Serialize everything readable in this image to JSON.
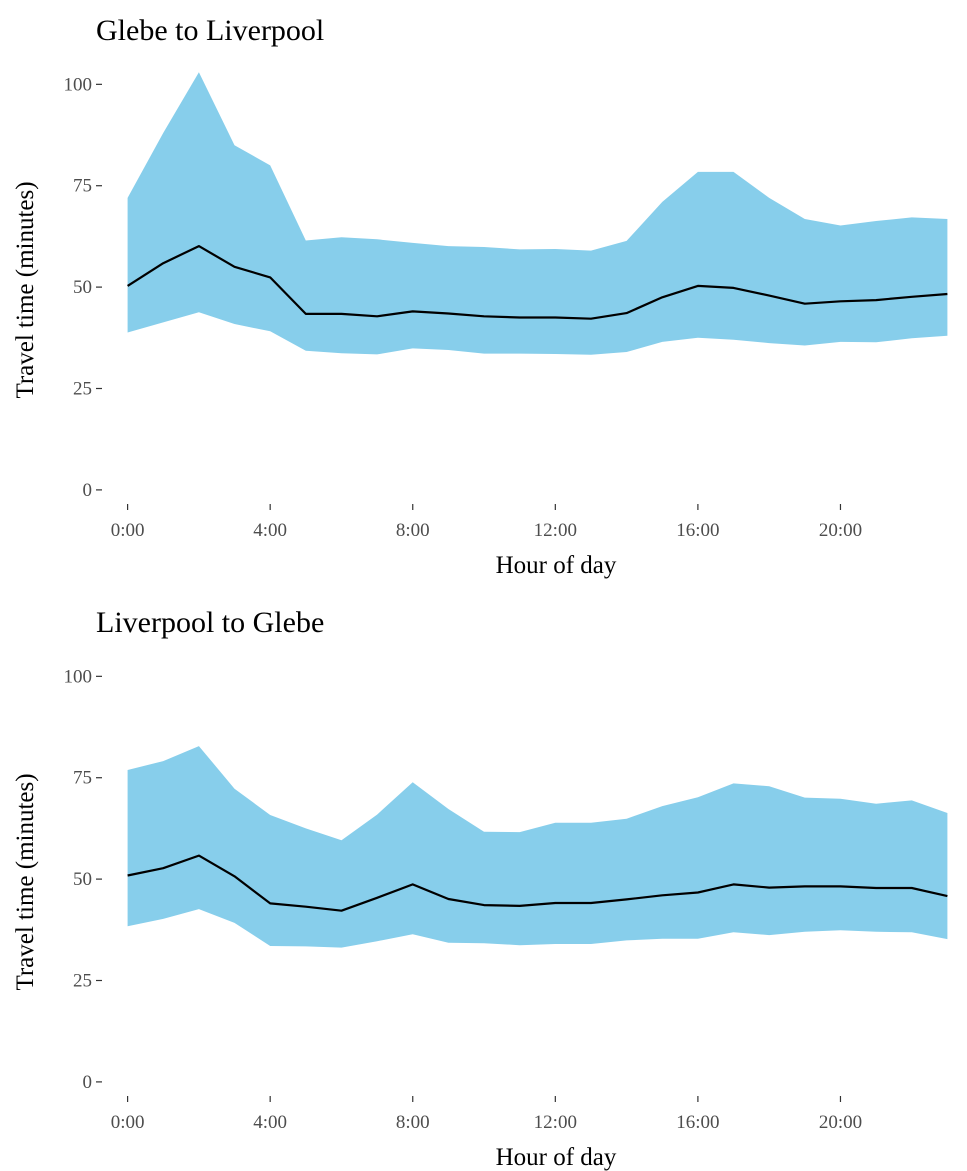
{
  "colors": {
    "ribbon": "#87ceeb",
    "line": "#000000",
    "tick_text": "#4d4d4d"
  },
  "chart_data": [
    {
      "type": "area",
      "title": "Glebe to Liverpool",
      "xlabel": "Hour of day",
      "ylabel": "Travel time (minutes)",
      "x": [
        0,
        1,
        2,
        3,
        4,
        5,
        6,
        7,
        8,
        9,
        10,
        11,
        12,
        13,
        14,
        15,
        16,
        17,
        18,
        19,
        20,
        21,
        22,
        23
      ],
      "xticks": [
        {
          "v": 0,
          "label": "0:00"
        },
        {
          "v": 4,
          "label": "4:00"
        },
        {
          "v": 8,
          "label": "8:00"
        },
        {
          "v": 12,
          "label": "12:00"
        },
        {
          "v": 16,
          "label": "16:00"
        },
        {
          "v": 20,
          "label": "20:00"
        }
      ],
      "yticks": [
        {
          "v": 0,
          "label": "0"
        },
        {
          "v": 25,
          "label": "25"
        },
        {
          "v": 50,
          "label": "50"
        },
        {
          "v": 75,
          "label": "75"
        },
        {
          "v": 100,
          "label": "100"
        }
      ],
      "xlim": [
        -0.55,
        23.55
      ],
      "ylim": [
        -2,
        106
      ],
      "grid": false,
      "series": [
        {
          "role": "upper",
          "values": [
            72,
            88,
            103,
            85,
            80,
            61.5,
            62.3,
            61.8,
            60.9,
            60.1,
            59.9,
            59.3,
            59.4,
            59,
            61.4,
            71,
            78.4,
            78.4,
            72,
            66.8,
            65.2,
            66.3,
            67.2,
            66.8
          ]
        },
        {
          "role": "median",
          "values": [
            50.3,
            55.9,
            60.1,
            55.0,
            52.4,
            43.4,
            43.4,
            42.8,
            44.0,
            43.5,
            42.8,
            42.5,
            42.5,
            42.2,
            43.6,
            47.5,
            50.3,
            49.8,
            47.9,
            45.9,
            46.5,
            46.8,
            47.6,
            48.3
          ]
        },
        {
          "role": "lower",
          "values": [
            38.8,
            41.3,
            43.8,
            40.9,
            39.1,
            34.3,
            33.7,
            33.4,
            34.9,
            34.5,
            33.6,
            33.6,
            33.5,
            33.3,
            34.0,
            36.5,
            37.5,
            37.0,
            36.2,
            35.6,
            36.5,
            36.4,
            37.4,
            38.0
          ]
        }
      ]
    },
    {
      "type": "area",
      "title": "Liverpool to Glebe",
      "xlabel": "Hour of day",
      "ylabel": "Travel time (minutes)",
      "x": [
        0,
        1,
        2,
        3,
        4,
        5,
        6,
        7,
        8,
        9,
        10,
        11,
        12,
        13,
        14,
        15,
        16,
        17,
        18,
        19,
        20,
        21,
        22,
        23
      ],
      "xticks": [
        {
          "v": 0,
          "label": "0:00"
        },
        {
          "v": 4,
          "label": "4:00"
        },
        {
          "v": 8,
          "label": "8:00"
        },
        {
          "v": 12,
          "label": "12:00"
        },
        {
          "v": 16,
          "label": "16:00"
        },
        {
          "v": 20,
          "label": "20:00"
        }
      ],
      "yticks": [
        {
          "v": 0,
          "label": "0"
        },
        {
          "v": 25,
          "label": "25"
        },
        {
          "v": 50,
          "label": "50"
        },
        {
          "v": 75,
          "label": "75"
        },
        {
          "v": 100,
          "label": "100"
        }
      ],
      "xlim": [
        -0.55,
        23.55
      ],
      "ylim": [
        -2,
        106
      ],
      "grid": false,
      "series": [
        {
          "role": "upper",
          "values": [
            76.9,
            79.1,
            82.8,
            72.3,
            65.8,
            62.5,
            59.6,
            65.9,
            73.9,
            67.3,
            61.7,
            61.6,
            63.9,
            63.9,
            64.9,
            68.0,
            70.2,
            73.6,
            72.9,
            70.1,
            69.8,
            68.6,
            69.4,
            66.3
          ]
        },
        {
          "role": "median",
          "values": [
            50.9,
            52.7,
            55.8,
            50.7,
            44.0,
            43.2,
            42.2,
            45.4,
            48.7,
            45.1,
            43.6,
            43.4,
            44.1,
            44.1,
            45.0,
            46.0,
            46.7,
            48.7,
            47.9,
            48.2,
            48.2,
            47.8,
            47.8,
            45.8
          ]
        },
        {
          "role": "lower",
          "values": [
            38.4,
            40.2,
            42.6,
            39.2,
            33.5,
            33.4,
            33.1,
            34.7,
            36.4,
            34.3,
            34.2,
            33.7,
            34.0,
            34.0,
            34.9,
            35.3,
            35.3,
            36.9,
            36.2,
            37.0,
            37.4,
            37.0,
            36.9,
            35.2
          ]
        }
      ]
    }
  ]
}
